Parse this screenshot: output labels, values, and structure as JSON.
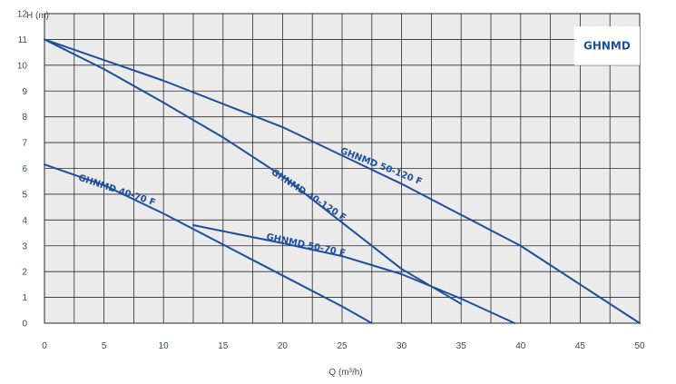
{
  "chart_data": {
    "type": "line",
    "title": "",
    "badge": "GHNMD",
    "xlabel": "Q (m³/h)",
    "ylabel": "H (m)",
    "xlim": [
      0,
      50
    ],
    "ylim": [
      0,
      12
    ],
    "x_ticks": [
      0,
      5,
      10,
      15,
      20,
      25,
      30,
      35,
      40,
      45,
      50
    ],
    "y_ticks": [
      0,
      1,
      2,
      3,
      4,
      5,
      6,
      7,
      8,
      9,
      10,
      11,
      12
    ],
    "grid": true,
    "colors": {
      "plot_background": "#ebebeb",
      "grid": "#2a2a2a",
      "series": "#1f4f9c",
      "text": "#3f4a5a",
      "badge_background": "#ffffff"
    },
    "series": [
      {
        "name": "GHNMD 40-70 F",
        "x": [
          0,
          5,
          10,
          15,
          20,
          25,
          27.5
        ],
        "y": [
          6.15,
          5.35,
          4.25,
          3.05,
          1.85,
          0.65,
          0
        ]
      },
      {
        "name": "GHNMD 50-70 F",
        "x": [
          12.5,
          20,
          25,
          30,
          35,
          39.5
        ],
        "y": [
          3.8,
          3.1,
          2.6,
          1.9,
          0.95,
          0
        ]
      },
      {
        "name": "GHNMD 40-120 F",
        "x": [
          0,
          5,
          10,
          15,
          20,
          25,
          30,
          35
        ],
        "y": [
          11,
          9.85,
          8.55,
          7.2,
          5.7,
          3.9,
          2.1,
          0.75
        ]
      },
      {
        "name": "GHNMD 50-120 F",
        "x": [
          0,
          10,
          20,
          30,
          40,
          50
        ],
        "y": [
          11,
          9.4,
          7.6,
          5.4,
          3.0,
          0
        ]
      }
    ]
  }
}
